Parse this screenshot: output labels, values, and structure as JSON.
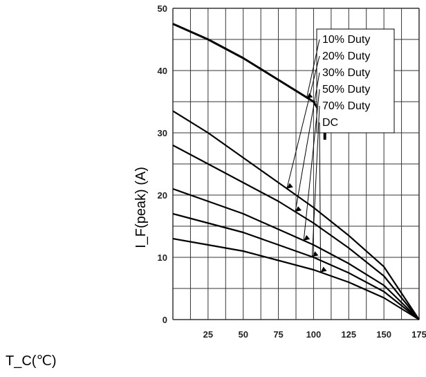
{
  "chart_data": {
    "type": "line",
    "title": "",
    "xlabel": "T_C(℃)",
    "ylabel": "I_F(peak) (A)",
    "x_ticks": [
      "25",
      "50",
      "75",
      "100",
      "125",
      "150",
      "175"
    ],
    "y_ticks": [
      "0",
      "10",
      "20",
      "30",
      "40",
      "50"
    ],
    "xlim": [
      0,
      175
    ],
    "ylim": [
      0,
      50
    ],
    "grid": true,
    "legend_placement": "top-right",
    "series": [
      {
        "name": "10% Duty",
        "x": [
          0,
          25,
          50,
          75,
          100,
          108
        ],
        "y": [
          47.5,
          45,
          42,
          38.5,
          35,
          32
        ]
      },
      {
        "name": "20% Duty",
        "x": [
          0,
          25,
          50,
          75,
          100,
          125,
          150,
          175
        ],
        "y": [
          33.5,
          30,
          26,
          22,
          18,
          13.5,
          8.5,
          0
        ]
      },
      {
        "name": "30% Duty",
        "x": [
          0,
          25,
          50,
          75,
          100,
          125,
          150,
          175
        ],
        "y": [
          28,
          25,
          22,
          19,
          15.5,
          11.5,
          7,
          0
        ]
      },
      {
        "name": "50% Duty",
        "x": [
          0,
          25,
          50,
          75,
          100,
          125,
          150,
          175
        ],
        "y": [
          21,
          19,
          17,
          14.5,
          12,
          9,
          5.5,
          0
        ]
      },
      {
        "name": "70% Duty",
        "x": [
          0,
          25,
          50,
          75,
          100,
          125,
          150,
          175
        ],
        "y": [
          17,
          15.5,
          14,
          12,
          10,
          7.5,
          4.5,
          0
        ]
      },
      {
        "name": "DC",
        "x": [
          0,
          25,
          50,
          75,
          100,
          125,
          150,
          175
        ],
        "y": [
          13,
          12,
          11,
          9.5,
          8,
          6,
          3.5,
          0
        ]
      }
    ],
    "colors": {
      "line": "#000000",
      "grid": "#333333",
      "background": "#ffffff"
    }
  }
}
